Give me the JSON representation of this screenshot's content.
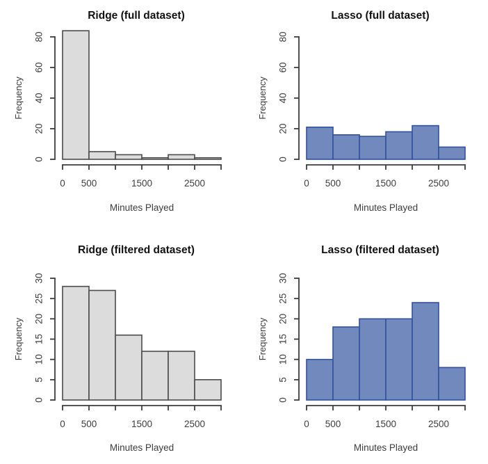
{
  "page": {
    "background": "#ffffff",
    "description_colors": {
      "gray_fill": "#dcdcdc",
      "gray_stroke": "#4b4b4b",
      "blue_fill": "#7289bd",
      "blue_stroke": "#31519e",
      "axis_text": "#3c3c3c",
      "title_text": "#111111"
    }
  },
  "chart_data": [
    {
      "type": "bar",
      "subtype": "histogram",
      "title": "Ridge (full dataset)",
      "xlabel": "Minutes Played",
      "ylabel": "Frequency",
      "bin_edges": [
        0,
        500,
        1000,
        1500,
        2000,
        2500,
        3000
      ],
      "values": [
        84,
        5,
        3,
        1,
        3,
        1
      ],
      "xlim": [
        0,
        3000
      ],
      "ylim": [
        0,
        80
      ],
      "yticks": [
        0,
        20,
        40,
        60,
        80
      ],
      "xticks": [
        0,
        500,
        1000,
        1500,
        2000,
        2500,
        3000
      ],
      "xtick_labels": [
        "0",
        "500",
        "",
        "1500",
        "",
        "2500",
        ""
      ],
      "grid": false,
      "legend": "none",
      "bar_fill": "#dcdcdc",
      "bar_stroke": "#4b4b4b"
    },
    {
      "type": "bar",
      "subtype": "histogram",
      "title": "Lasso (full dataset)",
      "xlabel": "Minutes Played",
      "ylabel": "Frequency",
      "bin_edges": [
        0,
        500,
        1000,
        1500,
        2000,
        2500,
        3000
      ],
      "values": [
        21,
        16,
        15,
        18,
        22,
        8
      ],
      "xlim": [
        0,
        3000
      ],
      "ylim": [
        0,
        80
      ],
      "yticks": [
        0,
        20,
        40,
        60,
        80
      ],
      "xticks": [
        0,
        500,
        1000,
        1500,
        2000,
        2500,
        3000
      ],
      "xtick_labels": [
        "0",
        "500",
        "",
        "1500",
        "",
        "2500",
        ""
      ],
      "grid": false,
      "legend": "none",
      "bar_fill": "#7289bd",
      "bar_stroke": "#31519e"
    },
    {
      "type": "bar",
      "subtype": "histogram",
      "title": "Ridge (filtered dataset)",
      "xlabel": "Minutes Played",
      "ylabel": "Frequency",
      "bin_edges": [
        0,
        500,
        1000,
        1500,
        2000,
        2500,
        3000
      ],
      "values": [
        28,
        27,
        16,
        12,
        12,
        5
      ],
      "xlim": [
        0,
        3000
      ],
      "ylim": [
        0,
        30
      ],
      "yticks": [
        0,
        5,
        10,
        15,
        20,
        25,
        30
      ],
      "xticks": [
        0,
        500,
        1000,
        1500,
        2000,
        2500,
        3000
      ],
      "xtick_labels": [
        "0",
        "500",
        "",
        "1500",
        "",
        "2500",
        ""
      ],
      "grid": false,
      "legend": "none",
      "bar_fill": "#dcdcdc",
      "bar_stroke": "#4b4b4b"
    },
    {
      "type": "bar",
      "subtype": "histogram",
      "title": "Lasso (filtered dataset)",
      "xlabel": "Minutes Played",
      "ylabel": "Frequency",
      "bin_edges": [
        0,
        500,
        1000,
        1500,
        2000,
        2500,
        3000
      ],
      "values": [
        10,
        18,
        20,
        20,
        24,
        8
      ],
      "xlim": [
        0,
        3000
      ],
      "ylim": [
        0,
        30
      ],
      "yticks": [
        0,
        5,
        10,
        15,
        20,
        25,
        30
      ],
      "xticks": [
        0,
        500,
        1000,
        1500,
        2000,
        2500,
        3000
      ],
      "xtick_labels": [
        "0",
        "500",
        "",
        "1500",
        "",
        "2500",
        ""
      ],
      "grid": false,
      "legend": "none",
      "bar_fill": "#7289bd",
      "bar_stroke": "#31519e"
    }
  ]
}
